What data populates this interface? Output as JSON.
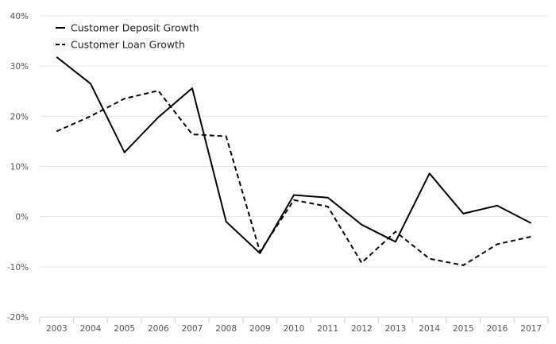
{
  "chart_data": {
    "type": "line",
    "x": [
      "2003",
      "2004",
      "2005",
      "2006",
      "2007",
      "2008",
      "2009",
      "2010",
      "2011",
      "2012",
      "2013",
      "2014",
      "2015",
      "2016",
      "2017"
    ],
    "series": [
      {
        "name": "Customer Deposit Growth",
        "dash": "solid",
        "color": "#000000",
        "values": [
          31.8,
          26.5,
          12.8,
          19.8,
          25.6,
          -1.0,
          -7.3,
          4.3,
          3.8,
          -1.6,
          -5.0,
          8.6,
          0.6,
          2.2,
          -1.3
        ]
      },
      {
        "name": "Customer Loan Growth",
        "dash": "dashed",
        "color": "#000000",
        "values": [
          17.0,
          20.0,
          23.5,
          25.1,
          16.4,
          16.0,
          -7.0,
          3.3,
          2.0,
          -9.2,
          -3.0,
          -8.4,
          -9.7,
          -5.5,
          -4.0
        ]
      }
    ],
    "ylim": [
      -20,
      40
    ],
    "yticks": [
      "-20%",
      "-10%",
      "0%",
      "10%",
      "20%",
      "30%",
      "40%"
    ],
    "ytick_values": [
      -20,
      -10,
      0,
      10,
      20,
      30,
      40
    ],
    "grid": true,
    "legend_position": "top-left",
    "xlabel": "",
    "ylabel": ""
  }
}
